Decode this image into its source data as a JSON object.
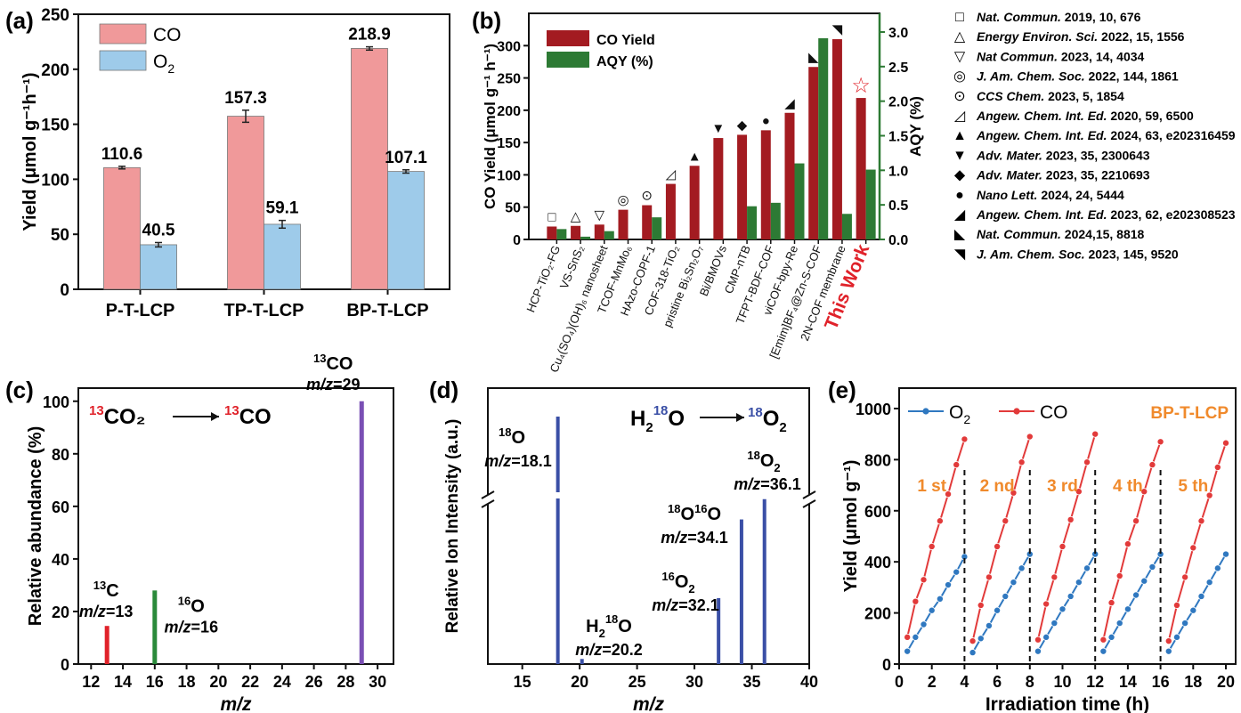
{
  "colors": {
    "co_red": "#f0999a",
    "o2_blue": "#9ecbea",
    "b_co": "#a31b21",
    "b_aqy": "#2d7a34",
    "c_13c": "#e0222a",
    "c_16o": "#2a8a3a",
    "c_13co": "#7a4fb4",
    "d_bar": "#3a4fa6",
    "e_o2": "#2f78c0",
    "e_co": "#e23a3a",
    "cycle": "#f08a2c"
  },
  "chart_data": [
    {
      "panel": "(a)",
      "type": "bar",
      "categories": [
        "P-T-LCP",
        "TP-T-LCP",
        "BP-T-LCP"
      ],
      "series": [
        {
          "name": "CO",
          "values": [
            110.6,
            157.3,
            218.9
          ],
          "errors": [
            1.2,
            5.5,
            1.5
          ]
        },
        {
          "name": "O",
          "sub": "2",
          "values": [
            40.5,
            59.1,
            107.1
          ],
          "errors": [
            2.0,
            3.5,
            1.5
          ]
        }
      ],
      "data_labels": [
        [
          "110.6",
          "157.3",
          "218.9"
        ],
        [
          "40.5",
          "59.1",
          "107.1"
        ]
      ],
      "ylabel": "Yield (μmol g⁻¹h⁻¹)",
      "ylim": [
        0,
        250
      ],
      "yticks": [
        "0",
        "50",
        "100",
        "150",
        "200",
        "250"
      ],
      "legend": "top-left"
    },
    {
      "panel": "(b)",
      "type": "bar",
      "categories": [
        "HCP-TiO₂-FG",
        "VS-SnS₂",
        "Cu₄(SO₄)(OH)₆ nanosheet",
        "TCOF-MnMo₆",
        "HAzo-COPF-1",
        "COF-318-TiO₂",
        "pristine Bi₂Sn₂O₇",
        "Bi/BMOVs",
        "CMP-nTB",
        "TFPT-BDF-COF",
        "viCOF-bpy-Re",
        "[Emim]BF₄@Zn-S-COF",
        "2N-COF membrane",
        "This Work"
      ],
      "series": [
        {
          "name": "CO Yield",
          "axis": "left",
          "values": [
            20,
            21,
            23,
            46,
            53,
            86,
            114,
            157,
            162,
            169,
            196,
            267,
            310,
            219
          ]
        },
        {
          "name": "AQY (%)",
          "axis": "right",
          "values": [
            0.15,
            0.04,
            0.12,
            0.0,
            0.32,
            0.0,
            0.0,
            0.0,
            0.48,
            0.53,
            1.1,
            2.91,
            0.37,
            1.01
          ]
        }
      ],
      "markers": [
        "□",
        "△",
        "▽",
        "◎",
        "⊙",
        "◿",
        "▲",
        "▼",
        "◆",
        "●",
        "◢",
        "◣",
        "◥",
        "☆"
      ],
      "ylabel": "CO Yield (μmol g⁻¹ h⁻¹)",
      "ylabel_right": "AQY (%)",
      "ylim": [
        0,
        350
      ],
      "ylim_right": [
        0,
        3.27
      ],
      "yticks": [
        "0",
        "50",
        "100",
        "150",
        "200",
        "250",
        "300"
      ],
      "yticks_right": [
        "0.0",
        "0.5",
        "1.0",
        "1.5",
        "2.0",
        "2.5",
        "3.0"
      ],
      "legend": "top-left",
      "references": [
        {
          "marker": "□",
          "journal": "Nat. Commun.",
          "rest": " 2019, 10, 676"
        },
        {
          "marker": "△",
          "journal": "Energy Environ. Sci.",
          "rest": " 2022, 15, 1556"
        },
        {
          "marker": "▽",
          "journal": "Nat Commun.",
          "rest": " 2023, 14, 4034"
        },
        {
          "marker": "◎",
          "journal": "J. Am. Chem. Soc.",
          "rest": " 2022, 144, 1861"
        },
        {
          "marker": "⊙",
          "journal": "CCS Chem.",
          "rest": " 2023, 5, 1854"
        },
        {
          "marker": "◿",
          "journal": "Angew. Chem. Int. Ed.",
          "rest": " 2020, 59, 6500"
        },
        {
          "marker": "▲",
          "journal": "Angew. Chem. Int. Ed.",
          "rest": " 2024, 63, e202316459"
        },
        {
          "marker": "▼",
          "journal": "Adv. Mater.",
          "rest": " 2023, 35, 2300643"
        },
        {
          "marker": "◆",
          "journal": "Adv. Mater.",
          "rest": " 2023, 35, 2210693"
        },
        {
          "marker": "●",
          "journal": "Nano Lett.",
          "rest": " 2024, 24, 5444"
        },
        {
          "marker": "◢",
          "journal": "Angew. Chem. Int. Ed.",
          "rest": " 2023, 62, e202308523"
        },
        {
          "marker": "◣",
          "journal": "Nat. Commun.",
          "rest": " 2024,15, 8818"
        },
        {
          "marker": "◥",
          "journal": "J. Am. Chem. Soc.",
          "rest": " 2023, 145, 9520"
        }
      ]
    },
    {
      "panel": "(c)",
      "type": "bar",
      "x": [
        13,
        16,
        29
      ],
      "values": [
        14.5,
        28,
        100
      ],
      "peak_labels": [
        [
          "13",
          "C",
          "m/z=13"
        ],
        [
          "16",
          "O",
          "m/z=16"
        ],
        [
          "13",
          "CO",
          "m/z=29"
        ]
      ],
      "reaction": [
        "13",
        "CO₂",
        "13",
        "CO"
      ],
      "xlabel": "m/z",
      "ylabel": "Relative abundance (%)",
      "xlim": [
        11.2,
        31
      ],
      "ylim": [
        0,
        105
      ],
      "xticks": [
        12,
        14,
        16,
        18,
        20,
        22,
        24,
        26,
        28,
        30
      ],
      "yticks": [
        0,
        20,
        40,
        60,
        80,
        100
      ]
    },
    {
      "panel": "(d)",
      "type": "bar",
      "x": [
        18.1,
        20.2,
        32.1,
        34.1,
        36.1
      ],
      "values": [
        100,
        2,
        26,
        57,
        65
      ],
      "peak_labels": [
        [
          "18",
          "O",
          "m/z=18.1"
        ],
        [
          "H₂",
          "18",
          "O",
          "m/z=20.2"
        ],
        [
          "16",
          "O₂",
          "m/z=32.1"
        ],
        [
          "18",
          "O",
          "16",
          "O",
          "m/z=34.1"
        ],
        [
          "18",
          "O₂",
          "m/z=36.1"
        ]
      ],
      "reaction": [
        "H₂",
        "18",
        "O",
        "18",
        "O₂"
      ],
      "xlabel": "m/z",
      "ylabel": "Relative Ion Intensity (a.u.)",
      "xlim": [
        12,
        40
      ],
      "xticks": [
        15,
        20,
        25,
        30,
        35,
        40
      ],
      "axis_break": true
    },
    {
      "panel": "(e)",
      "type": "line",
      "x": [
        0.5,
        1,
        1.5,
        2,
        2.5,
        3,
        3.5,
        4
      ],
      "series": [
        {
          "name": "O",
          "sub": "2",
          "cycles": [
            [
              50,
              105,
              155,
              210,
              255,
              310,
              360,
              420
            ],
            [
              45,
              100,
              150,
              210,
              265,
              320,
              375,
              430
            ],
            [
              50,
              105,
              160,
              215,
              265,
              320,
              375,
              430
            ],
            [
              50,
              105,
              160,
              215,
              270,
              325,
              380,
              430
            ],
            [
              50,
              105,
              160,
              210,
              265,
              320,
              375,
              430
            ]
          ]
        },
        {
          "name": "CO",
          "cycles": [
            [
              105,
              245,
              330,
              460,
              560,
              665,
              780,
              880
            ],
            [
              90,
              230,
              340,
              460,
              560,
              670,
              790,
              890
            ],
            [
              95,
              235,
              340,
              460,
              565,
              675,
              790,
              900
            ],
            [
              95,
              240,
              345,
              470,
              560,
              675,
              780,
              870
            ],
            [
              90,
              230,
              340,
              455,
              560,
              660,
              770,
              865
            ]
          ]
        }
      ],
      "cycle_labels": [
        "1 st",
        "2 nd",
        "3 rd",
        "4 th",
        "5 th"
      ],
      "cycle_length": 4,
      "tag": "BP-T-LCP",
      "xlabel": "Irradiation time (h)",
      "ylabel": "Yield (μmol g⁻¹)",
      "xlim": [
        0,
        20.6
      ],
      "ylim": [
        0,
        1080
      ],
      "xticks": [
        0,
        2,
        4,
        6,
        8,
        10,
        12,
        14,
        16,
        18,
        20
      ],
      "yticks": [
        0,
        200,
        400,
        600,
        800,
        1000
      ],
      "legend": "top-left"
    }
  ]
}
